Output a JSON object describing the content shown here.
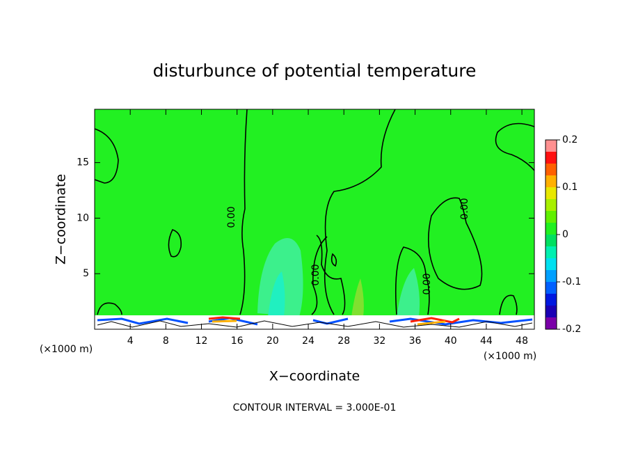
{
  "chart_data": {
    "type": "contour",
    "title": "disturbunce of potential temperature",
    "x_label": "X−coordinate",
    "y_label": "Z−coordinate",
    "x_unit_label": "(×1000 m)",
    "footer": "CONTOUR INTERVAL = 3.000E-01",
    "contour_labels": [
      "0.00",
      "0.00",
      "0.00",
      "0.00"
    ],
    "xlim": [
      0,
      49.4
    ],
    "xticks": [
      4,
      8,
      12,
      16,
      20,
      24,
      28,
      32,
      36,
      40,
      44,
      48
    ],
    "ylim": [
      0,
      19.8
    ],
    "yticks": [
      5,
      10,
      15
    ],
    "colorbar": {
      "lim": [
        -0.2,
        0.2
      ],
      "ticks": [
        0.2,
        0.1,
        0,
        -0.1,
        -0.2
      ],
      "levels": [
        -0.2,
        -0.175,
        -0.15,
        -0.125,
        -0.1,
        -0.075,
        -0.05,
        -0.025,
        0,
        0.025,
        0.05,
        0.075,
        0.1,
        0.125,
        0.15,
        0.175,
        0.2
      ],
      "colors": [
        "#7a00a8",
        "#1a00b4",
        "#0018e0",
        "#0060ff",
        "#00a0ff",
        "#00e0f0",
        "#00f0b0",
        "#00e060",
        "#20f020",
        "#60f000",
        "#a8f000",
        "#e8e800",
        "#ffb000",
        "#ff6000",
        "#ff1010",
        "#ff9090"
      ]
    }
  }
}
